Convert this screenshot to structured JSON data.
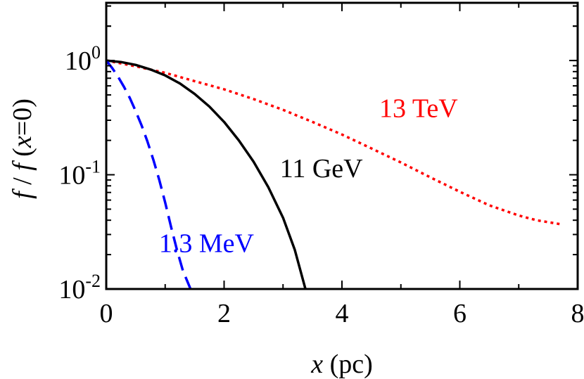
{
  "chart_data": {
    "type": "line",
    "xlabel": "x (pc)",
    "xlabel_parts": {
      "var": "x",
      "unit": " (pc)"
    },
    "ylabel": "f / f (x=0)",
    "ylabel_parts": {
      "f1": "f",
      "sep": " / ",
      "f2": "f",
      "open": " (",
      "x": "x",
      "eq": "=0)"
    },
    "xlim": [
      0,
      8
    ],
    "ylim": [
      0.01,
      3.2
    ],
    "yscale": "log",
    "grid": false,
    "x_ticks": [
      {
        "value": 0,
        "label": "0"
      },
      {
        "value": 2,
        "label": "2"
      },
      {
        "value": 4,
        "label": "4"
      },
      {
        "value": 6,
        "label": "6"
      },
      {
        "value": 8,
        "label": "8"
      }
    ],
    "y_ticks": [
      {
        "value": 1,
        "base": "10",
        "exp": "0"
      },
      {
        "value": 0.1,
        "base": "10",
        "exp": "-1"
      },
      {
        "value": 0.01,
        "base": "10",
        "exp": "-2"
      }
    ],
    "series": [
      {
        "name": "13 TeV",
        "color": "#ff0000",
        "style": "dotted",
        "label_pos": {
          "x": 5.3,
          "y": 0.32
        },
        "points": [
          [
            0,
            1.0
          ],
          [
            0.5,
            0.89
          ],
          [
            1,
            0.78
          ],
          [
            1.5,
            0.66
          ],
          [
            2,
            0.56
          ],
          [
            2.5,
            0.46
          ],
          [
            3,
            0.37
          ],
          [
            3.5,
            0.29
          ],
          [
            4,
            0.225
          ],
          [
            4.5,
            0.17
          ],
          [
            5,
            0.128
          ],
          [
            5.5,
            0.095
          ],
          [
            6,
            0.071
          ],
          [
            6.5,
            0.054
          ],
          [
            7,
            0.044
          ],
          [
            7.3,
            0.04
          ],
          [
            7.7,
            0.037
          ]
        ]
      },
      {
        "name": "11 GeV",
        "color": "#000000",
        "style": "solid",
        "label_pos": {
          "x": 3.65,
          "y": 0.095
        },
        "points": [
          [
            0,
            1.0
          ],
          [
            0.25,
            0.97
          ],
          [
            0.5,
            0.915
          ],
          [
            0.75,
            0.835
          ],
          [
            1,
            0.74
          ],
          [
            1.25,
            0.63
          ],
          [
            1.5,
            0.51
          ],
          [
            1.75,
            0.395
          ],
          [
            2,
            0.29
          ],
          [
            2.25,
            0.2
          ],
          [
            2.5,
            0.13
          ],
          [
            2.75,
            0.078
          ],
          [
            3,
            0.042
          ],
          [
            3.2,
            0.022
          ],
          [
            3.38,
            0.01
          ]
        ]
      },
      {
        "name": "1.3 MeV",
        "color": "#0000ff",
        "style": "dashed",
        "label_pos": {
          "x": 1.7,
          "y": 0.021
        },
        "points": [
          [
            0,
            1.0
          ],
          [
            0.1,
            0.86
          ],
          [
            0.2,
            0.72
          ],
          [
            0.3,
            0.59
          ],
          [
            0.4,
            0.47
          ],
          [
            0.5,
            0.36
          ],
          [
            0.6,
            0.27
          ],
          [
            0.7,
            0.195
          ],
          [
            0.8,
            0.135
          ],
          [
            0.9,
            0.09
          ],
          [
            1.0,
            0.057
          ],
          [
            1.1,
            0.035
          ],
          [
            1.2,
            0.022
          ],
          [
            1.3,
            0.0145
          ],
          [
            1.43,
            0.01
          ]
        ]
      }
    ]
  }
}
